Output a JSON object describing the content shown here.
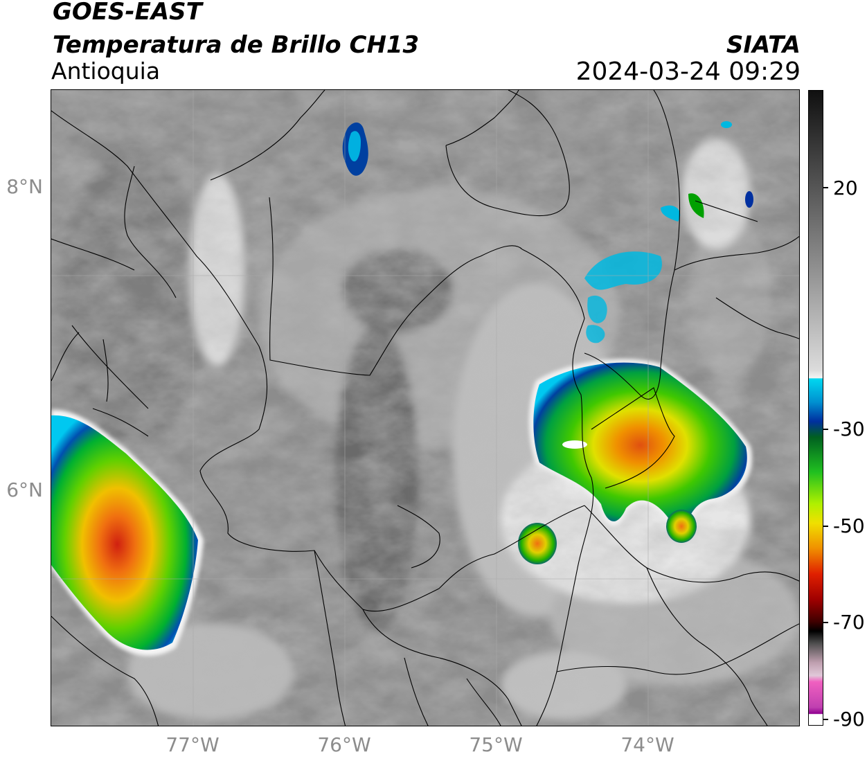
{
  "header": {
    "satellite": "GOES-EAST",
    "product": "Temperatura de Brillo CH13",
    "region": "Antioquia",
    "organization": "SIATA",
    "datetime": "2024-03-24 09:29"
  },
  "map": {
    "lat_labels": [
      "8°N",
      "6°N"
    ],
    "lon_labels": [
      "77°W",
      "76°W",
      "75°W",
      "74°W"
    ],
    "grid_color": "#aaaaaa",
    "background_gray": "#8a8a8a"
  },
  "colorbar": {
    "title": "",
    "tick_labels": [
      "20",
      "-30",
      "-50",
      "-70",
      "-90"
    ],
    "range": [
      -90,
      30
    ],
    "colors": {
      "warm_top": "#101010",
      "mid_gray": "#9a9a9a",
      "near_white": "#f2f2f2",
      "cyan": "#00d8f0",
      "blue": "#0030a0",
      "green": "#00b000",
      "yellow": "#f0f000",
      "orange": "#f08000",
      "red": "#d00000",
      "dark_red": "#600000",
      "black": "#000000",
      "pale_pink": "#e0c0d0",
      "pink": "#f060c0",
      "magenta": "#900090",
      "bottom_white": "#ffffff"
    }
  }
}
